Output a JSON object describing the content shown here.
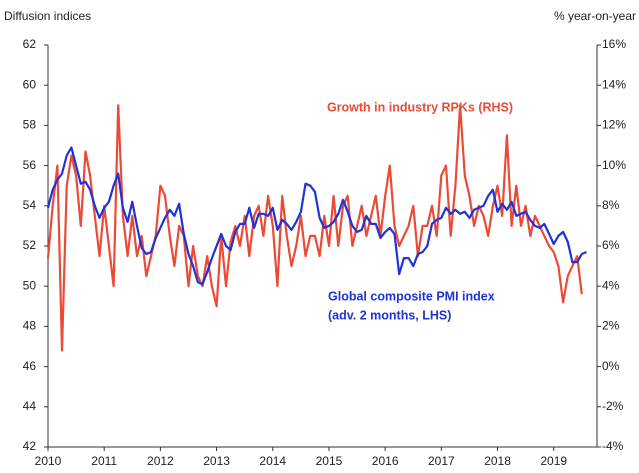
{
  "chart_data": {
    "type": "line",
    "y_label": "Diffusion indices",
    "y2_label": "% year-on-year",
    "annotations": [
      "Growth in industry RPKs (RHS)",
      "Global composite PMI index",
      "(adv. 2 months, LHS)"
    ],
    "x": [
      2010,
      2010.083,
      2010.167,
      2010.25,
      2010.333,
      2010.417,
      2010.5,
      2010.583,
      2010.667,
      2010.75,
      2010.833,
      2010.917,
      2011,
      2011.083,
      2011.167,
      2011.25,
      2011.333,
      2011.417,
      2011.5,
      2011.583,
      2011.667,
      2011.75,
      2011.833,
      2011.917,
      2012,
      2012.083,
      2012.167,
      2012.25,
      2012.333,
      2012.417,
      2012.5,
      2012.583,
      2012.667,
      2012.75,
      2012.833,
      2012.917,
      2013,
      2013.083,
      2013.167,
      2013.25,
      2013.333,
      2013.417,
      2013.5,
      2013.583,
      2013.667,
      2013.75,
      2013.833,
      2013.917,
      2014,
      2014.083,
      2014.167,
      2014.25,
      2014.333,
      2014.417,
      2014.5,
      2014.583,
      2014.667,
      2014.75,
      2014.833,
      2014.917,
      2015,
      2015.083,
      2015.167,
      2015.25,
      2015.333,
      2015.417,
      2015.5,
      2015.583,
      2015.667,
      2015.75,
      2015.833,
      2015.917,
      2016,
      2016.083,
      2016.167,
      2016.25,
      2016.333,
      2016.417,
      2016.5,
      2016.583,
      2016.667,
      2016.75,
      2016.833,
      2016.917,
      2017,
      2017.083,
      2017.167,
      2017.25,
      2017.333,
      2017.417,
      2017.5,
      2017.583,
      2017.667,
      2017.75,
      2017.833,
      2017.917,
      2018,
      2018.083,
      2018.167,
      2018.25,
      2018.333,
      2018.417,
      2018.5,
      2018.583,
      2018.667,
      2018.75,
      2018.833,
      2018.917,
      2019,
      2019.083,
      2019.167,
      2019.25,
      2019.333,
      2019.417,
      2019.5,
      2019.583
    ],
    "series": [
      {
        "name": "Global composite PMI index",
        "color": "#1f33d8",
        "values": [
          53.9,
          54.8,
          55.3,
          55.6,
          56.5,
          56.9,
          56.0,
          55.1,
          55.2,
          54.8,
          54.0,
          53.4,
          53.9,
          54.2,
          55.0,
          55.6,
          53.9,
          53.2,
          54.2,
          53.0,
          51.9,
          51.6,
          51.7,
          52.4,
          52.9,
          53.4,
          53.8,
          53.5,
          54.1,
          52.6,
          51.6,
          51.0,
          50.2,
          50.1,
          50.7,
          51.4,
          52.0,
          52.6,
          52.0,
          51.8,
          52.7,
          53.1,
          53.1,
          53.9,
          52.9,
          53.6,
          53.6,
          53.5,
          53.9,
          52.8,
          53.3,
          53.1,
          52.8,
          53.2,
          53.7,
          55.1,
          55.0,
          54.7,
          53.4,
          52.9,
          53.0,
          53.2,
          53.6,
          54.3,
          53.7,
          53.0,
          52.7,
          52.8,
          53.5,
          53.1,
          53.1,
          52.4,
          52.7,
          52.9,
          52.6,
          50.6,
          51.4,
          51.4,
          51.0,
          51.6,
          51.7,
          52.0,
          53.1,
          53.3,
          53.4,
          53.9,
          53.6,
          53.8,
          53.6,
          53.7,
          53.4,
          53.8,
          53.9,
          54.0,
          54.5,
          54.8,
          53.7,
          54.1,
          53.8,
          54.2,
          53.5,
          53.6,
          53.7,
          53.3,
          53.0,
          52.9,
          53.1,
          52.6,
          52.1,
          52.5,
          52.7,
          52.2,
          51.2,
          51.2,
          51.6,
          51.7
        ]
      },
      {
        "name": "Growth in industry RPKs",
        "color": "#eb4b36",
        "axis": "y2",
        "values": [
          5.4,
          8.0,
          10.0,
          0.8,
          9.0,
          10.5,
          9.5,
          7.0,
          10.7,
          9.5,
          7.5,
          5.5,
          8.0,
          6.0,
          4.0,
          13.0,
          7.5,
          5.5,
          7.5,
          5.5,
          6.5,
          4.5,
          5.5,
          6.5,
          9.0,
          8.5,
          6.5,
          5.0,
          7.0,
          6.5,
          4.0,
          6.0,
          4.5,
          4.0,
          5.5,
          4.0,
          3.0,
          6.5,
          4.0,
          6.2,
          7.0,
          6.0,
          7.5,
          5.5,
          7.5,
          8.0,
          6.5,
          8.5,
          7.0,
          4.0,
          8.5,
          6.5,
          5.0,
          6.0,
          7.5,
          5.5,
          6.5,
          6.5,
          5.5,
          7.5,
          6.0,
          8.5,
          6.0,
          8.0,
          8.5,
          6.0,
          7.0,
          8.0,
          6.5,
          7.5,
          8.5,
          6.5,
          8.5,
          10.0,
          7.0,
          6.0,
          6.5,
          7.0,
          8.0,
          5.5,
          7.0,
          7.0,
          8.0,
          6.5,
          9.5,
          10.0,
          6.5,
          9.0,
          13.0,
          9.5,
          8.5,
          7.0,
          8.0,
          7.5,
          6.5,
          8.0,
          9.0,
          7.5,
          11.5,
          7.0,
          9.0,
          7.0,
          8.0,
          6.5,
          7.5,
          7.0,
          6.5,
          6.0,
          5.7,
          5.0,
          3.2,
          4.5,
          5.0,
          5.5,
          3.6,
          null
        ]
      }
    ],
    "xlim": [
      2010,
      2019.77
    ],
    "xticks": [
      2010,
      2011,
      2012,
      2013,
      2014,
      2015,
      2016,
      2017,
      2018,
      2019
    ],
    "ylim": [
      42,
      62
    ],
    "yticks": [
      42,
      44,
      46,
      48,
      50,
      52,
      54,
      56,
      58,
      60,
      62
    ],
    "y2lim": [
      -4,
      16
    ],
    "y2ticks": [
      {
        "value": -4,
        "label": "-4%"
      },
      {
        "value": -2,
        "label": "-2%"
      },
      {
        "value": 0,
        "label": "0%"
      },
      {
        "value": 2,
        "label": "2%"
      },
      {
        "value": 4,
        "label": "4%"
      },
      {
        "value": 6,
        "label": "6%"
      },
      {
        "value": 8,
        "label": "8%"
      },
      {
        "value": 10,
        "label": "10%"
      },
      {
        "value": 12,
        "label": "12%"
      },
      {
        "value": 14,
        "label": "14%"
      },
      {
        "value": 16,
        "label": "16%"
      }
    ]
  }
}
